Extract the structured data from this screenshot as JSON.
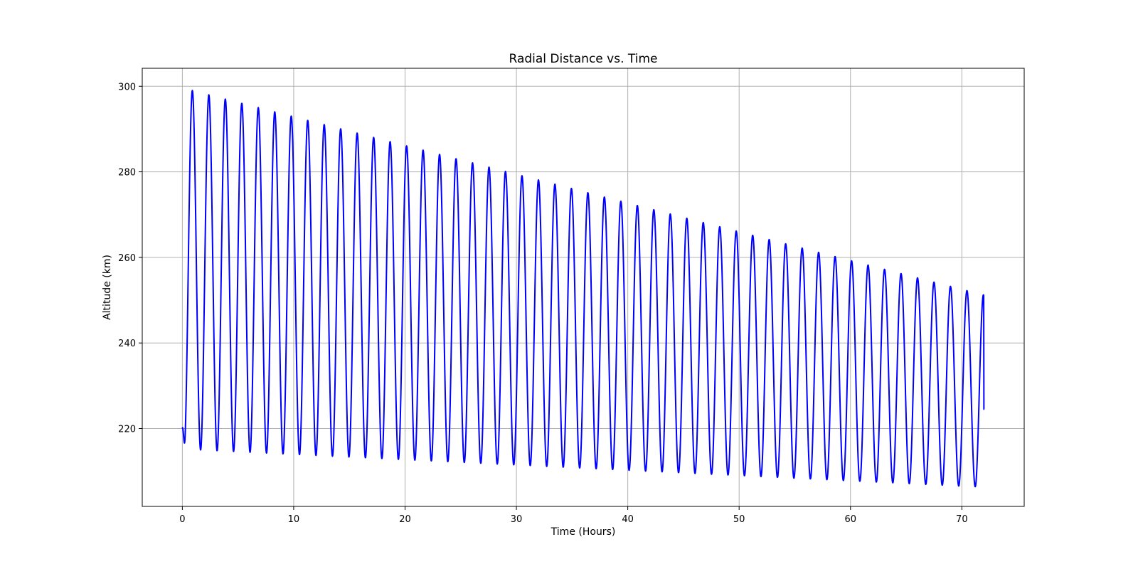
{
  "chart_data": {
    "type": "line",
    "title": "Radial Distance vs. Time",
    "xlabel": "Time (Hours)",
    "ylabel": "Altitude (km)",
    "xlim": [
      -3.6,
      75.6
    ],
    "ylim": [
      201.8,
      304.2
    ],
    "xticks": [
      0,
      10,
      20,
      30,
      40,
      50,
      60,
      70
    ],
    "yticks": [
      220,
      240,
      260,
      280,
      300
    ],
    "xtick_labels": [
      "0",
      "10",
      "20",
      "30",
      "40",
      "50",
      "60",
      "70"
    ],
    "ytick_labels": [
      "220",
      "240",
      "260",
      "280",
      "300"
    ],
    "grid": true,
    "line_color": "#0000ff",
    "grid_color": "#b0b0b0",
    "series": [
      {
        "oscillation": {
          "x_start": 0,
          "x_end": 72,
          "start_value": 220,
          "end_value": 224.5,
          "period_hours": 1.48,
          "first_apogee_time": 0.9,
          "apogee_start": 299.6,
          "apogee_end": 251.2,
          "perigee_start": 215.2,
          "perigee_end": 206.3
        }
      }
    ]
  }
}
